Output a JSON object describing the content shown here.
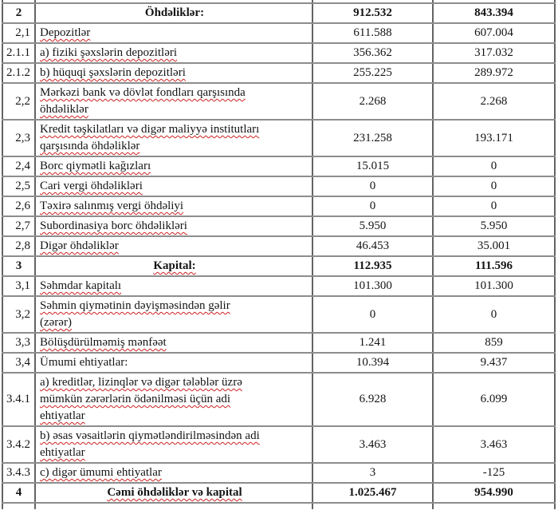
{
  "document": {
    "type": "balance-sheet-fragment",
    "language": "az",
    "colors": {
      "background": "#ffffff",
      "text": "#141414",
      "border_vertical": "#636363",
      "border_horizontal": "#8d8d8d",
      "spellcheck_squiggle": "#cf2020"
    }
  },
  "table": {
    "columns": [
      "row-number",
      "item-name",
      "value-current",
      "value-previous"
    ],
    "rows": [
      {
        "num": "2",
        "label": "Öhdəliklər:",
        "v1": "912.532",
        "v2": "843.394",
        "style": "section",
        "sq": false
      },
      {
        "num": "2,1",
        "label": "Depozitlər",
        "v1": "611.588",
        "v2": "607.004",
        "style": "item",
        "sq": true
      },
      {
        "num": "2.1.1",
        "label": "a) fiziki şəxslərin depozitləri",
        "v1": "356.362",
        "v2": "317.032",
        "style": "item",
        "sq": true
      },
      {
        "num": "2.1.2",
        "label": "b) hüquqi şəxslərin depozitləri",
        "v1": "255.225",
        "v2": "289.972",
        "style": "item",
        "sq": true
      },
      {
        "num": "2,2",
        "label": "Mərkəzi bank və dövlət fondları qarşısında\nöhdəliklər",
        "v1": "2.268",
        "v2": "2.268",
        "style": "item",
        "sq": true
      },
      {
        "num": "2,3",
        "label": "Kredit təşkilatları və digər maliyyə institutları\nqarşısında öhdəliklər",
        "v1": "231.258",
        "v2": "193.171",
        "style": "item",
        "sq": true
      },
      {
        "num": "2,4",
        "label": "Borc qiymətli kağızları",
        "v1": "15.015",
        "v2": "0",
        "style": "item",
        "sq": true
      },
      {
        "num": "2,5",
        "label": "Cari vergi öhdəlikləri",
        "v1": "0",
        "v2": "0",
        "style": "item",
        "sq": true
      },
      {
        "num": "2,6",
        "label": "Təxirə salınmış vergi öhdəliyi",
        "v1": "0",
        "v2": "0",
        "style": "item",
        "sq": true
      },
      {
        "num": "2,7",
        "label": "Subordinasiya borc öhdəlikləri",
        "v1": "5.950",
        "v2": "5.950",
        "style": "item",
        "sq": true
      },
      {
        "num": "2,8",
        "label": "Digər öhdəliklər",
        "v1": "46.453",
        "v2": "35.001",
        "style": "item",
        "sq": true
      },
      {
        "num": "3",
        "label": "Kapital:",
        "v1": "112.935",
        "v2": "111.596",
        "style": "section",
        "sq": true
      },
      {
        "num": "3,1",
        "label": "Səhmdar kapitalı",
        "v1": "101.300",
        "v2": "101.300",
        "style": "item",
        "sq": true
      },
      {
        "num": "3,2",
        "label": "Səhmin qiymətinin dəyişməsindən gəlir\n(zərər)",
        "v1": "0",
        "v2": "0",
        "style": "item",
        "sq": true
      },
      {
        "num": "3,3",
        "label": "Bölüşdürülməmiş mənfəət",
        "v1": "1.241",
        "v2": "859",
        "style": "item",
        "sq": true
      },
      {
        "num": "3,4",
        "label": "Ümumi ehtiyatlar:",
        "v1": "10.394",
        "v2": "9.437",
        "style": "item",
        "sq": false
      },
      {
        "num": "3.4.1",
        "label": "a) kreditlər, lizinqlər və digər tələblər üzrə\nmümkün zərərlərin ödənilməsi üçün adi\nehtiyatlar",
        "v1": "6.928",
        "v2": "6.099",
        "style": "item",
        "sq": true
      },
      {
        "num": "3.4.2",
        "label": "b) əsas vəsaitlərin qiymətləndirilməsindən adi\nehtiyatlar",
        "v1": "3.463",
        "v2": "3.463",
        "style": "item",
        "sq": true
      },
      {
        "num": "3.4.3",
        "label": "c) digər ümumi ehtiyatlar",
        "v1": "3",
        "v2": "-125",
        "style": "item",
        "sq": true
      },
      {
        "num": "4",
        "label": "Cəmi öhdəliklər və kapital",
        "v1": "1.025.467",
        "v2": "954.990",
        "style": "total",
        "sq": true
      }
    ]
  }
}
